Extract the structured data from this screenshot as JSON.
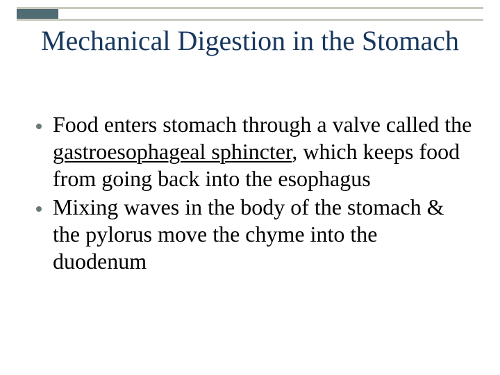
{
  "colors": {
    "bar_border": "#c9c9bd",
    "accent": "#4f6b74",
    "title": "#17375e",
    "text": "#000000",
    "dot": "#6b7a6e",
    "background": "#ffffff"
  },
  "title": "Mechanical Digestion in the Stomach",
  "title_fontsize": 40,
  "body_fontsize": 32,
  "bullets": [
    {
      "pre": "Food enters stomach through a valve called the ",
      "underlined": "gastroesophageal sphincter",
      "post": ", which keeps food from going back into the esophagus"
    },
    {
      "pre": "Mixing waves in the body of the stomach & the pylorus move the chyme into the duodenum",
      "underlined": "",
      "post": ""
    }
  ]
}
